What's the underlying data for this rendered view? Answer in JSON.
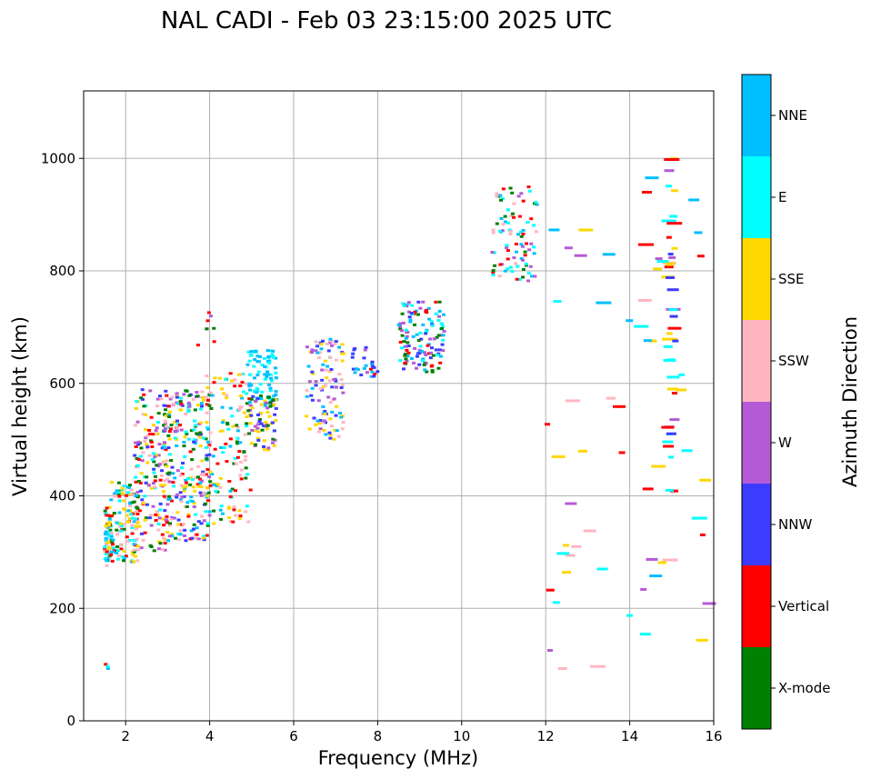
{
  "chart_data": {
    "type": "scatter",
    "title": "NAL CADI - Feb 03 23:15:00 2025 UTC",
    "xlabel": "Frequency (MHz)",
    "ylabel": "Virtual height (km)",
    "xlim": [
      1,
      16
    ],
    "ylim": [
      0,
      1120
    ],
    "xticks": [
      2,
      4,
      6,
      8,
      10,
      12,
      14,
      16
    ],
    "yticks": [
      0,
      200,
      400,
      600,
      800,
      1000
    ],
    "grid": true,
    "colorbar": {
      "label": "Azimuth Direction",
      "categories": [
        {
          "name": "X-mode",
          "color": "#008000"
        },
        {
          "name": "Vertical",
          "color": "#ff0000"
        },
        {
          "name": "NNW",
          "color": "#3c3cff"
        },
        {
          "name": "W",
          "color": "#b55ad6"
        },
        {
          "name": "SSW",
          "color": "#ffb6c1"
        },
        {
          "name": "SSE",
          "color": "#ffd700"
        },
        {
          "name": "E",
          "color": "#00ffff"
        },
        {
          "name": "NNE",
          "color": "#00bfff"
        }
      ]
    },
    "clusters": [
      {
        "name": "echo-1.5mhz",
        "x": [
          1.5,
          1.65
        ],
        "y": [
          275,
          380
        ],
        "n": 60,
        "colors": [
          "X-mode",
          "Vertical",
          "SSE",
          "SSW",
          "E",
          "NNE"
        ]
      },
      {
        "name": "echo-1.5mhz-low",
        "x": [
          1.5,
          1.6
        ],
        "y": [
          88,
          105
        ],
        "n": 3,
        "colors": [
          "Vertical",
          "NNE",
          "E"
        ]
      },
      {
        "name": "echo-1.7-2.3mhz",
        "x": [
          1.65,
          2.3
        ],
        "y": [
          280,
          430
        ],
        "n": 120,
        "colors": [
          "E",
          "NNE",
          "SSW",
          "SSE",
          "X-mode",
          "Vertical"
        ]
      },
      {
        "name": "echo-2.3-3mhz",
        "x": [
          2.2,
          3.0
        ],
        "y": [
          300,
          590
        ],
        "n": 160,
        "colors": [
          "SSW",
          "SSE",
          "E",
          "X-mode",
          "Vertical",
          "NNW",
          "W"
        ]
      },
      {
        "name": "echo-3-4mhz",
        "x": [
          2.9,
          4.0
        ],
        "y": [
          320,
          590
        ],
        "n": 260,
        "colors": [
          "SSE",
          "SSW",
          "X-mode",
          "Vertical",
          "E",
          "NNW",
          "W",
          "NNE"
        ]
      },
      {
        "name": "echo-4mhz-upper",
        "x": [
          3.7,
          4.2
        ],
        "y": [
          660,
          730
        ],
        "n": 8,
        "colors": [
          "W",
          "X-mode",
          "Vertical"
        ]
      },
      {
        "name": "echo-4-5mhz",
        "x": [
          3.9,
          5.0
        ],
        "y": [
          350,
          620
        ],
        "n": 140,
        "colors": [
          "SSE",
          "E",
          "X-mode",
          "Vertical",
          "SSW",
          "NNE"
        ]
      },
      {
        "name": "echo-5-5.6mhz-high",
        "x": [
          4.9,
          5.6
        ],
        "y": [
          560,
          660
        ],
        "n": 80,
        "colors": [
          "E",
          "NNE"
        ]
      },
      {
        "name": "echo-5-5.6mhz-low",
        "x": [
          4.9,
          5.6
        ],
        "y": [
          480,
          580
        ],
        "n": 70,
        "colors": [
          "NNW",
          "SSE",
          "W",
          "X-mode"
        ]
      },
      {
        "name": "echo-6.3-7.2mhz",
        "x": [
          6.3,
          7.2
        ],
        "y": [
          500,
          680
        ],
        "n": 110,
        "colors": [
          "NNW",
          "NNE",
          "SSW",
          "SSE",
          "W"
        ]
      },
      {
        "name": "echo-7.4-8mhz",
        "x": [
          7.4,
          8.0
        ],
        "y": [
          610,
          665
        ],
        "n": 25,
        "colors": [
          "NNW",
          "Vertical",
          "W",
          "NNE"
        ]
      },
      {
        "name": "echo-8.5-9.6mhz",
        "x": [
          8.5,
          9.6
        ],
        "y": [
          620,
          745
        ],
        "n": 130,
        "colors": [
          "NNW",
          "X-mode",
          "Vertical",
          "E",
          "NNE",
          "W"
        ]
      },
      {
        "name": "echo-10.7-11.8mhz",
        "x": [
          10.7,
          11.8
        ],
        "y": [
          780,
          950
        ],
        "n": 90,
        "colors": [
          "X-mode",
          "Vertical",
          "SSW",
          "W",
          "NNE",
          "E"
        ]
      },
      {
        "name": "echo-12-16mhz-sparse",
        "x": [
          12.0,
          16.0
        ],
        "y": [
          90,
          1010
        ],
        "n": 60,
        "colors": [
          "SSE",
          "SSW",
          "W",
          "E",
          "NNE",
          "Vertical"
        ]
      },
      {
        "name": "echo-15mhz-column",
        "x": [
          14.9,
          15.1
        ],
        "y": [
          390,
          1000
        ],
        "n": 40,
        "colors": [
          "SSE",
          "Vertical",
          "W",
          "NNW",
          "E"
        ]
      }
    ]
  }
}
